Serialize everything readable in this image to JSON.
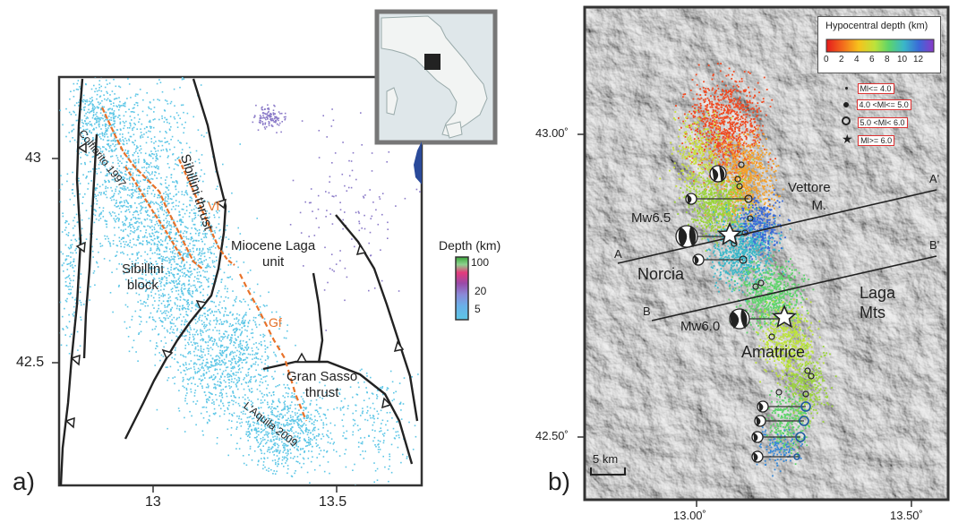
{
  "panel_a": {
    "letter": "a)",
    "lat_labels": [
      "43",
      "42.5"
    ],
    "lon_labels": [
      "13",
      "13.5"
    ],
    "fault_labels": {
      "sibillini_thrust": "Sibillini thrust",
      "colfiorito": "Colfiorito 1997",
      "vf": "Vf",
      "gf": "Gf",
      "miocene_laga_line1": "Miocene Laga",
      "miocene_laga_line2": "unit",
      "sibillini_block_line1": "Sibillini",
      "sibillini_block_line2": "block",
      "gran_sasso_line1": "Gran Sasso",
      "gran_sasso_line2": "thrust",
      "laquila": "L'Aquila 2009"
    },
    "depth_legend": {
      "title": "Depth (km)",
      "ticks": [
        "100",
        "20",
        "5"
      ]
    },
    "colors": {
      "seismicity": "#5cc6e6",
      "faults": "#222222",
      "active_faults": "#e8722a"
    }
  },
  "panel_b": {
    "letter": "b)",
    "lat_labels": [
      "43.00˚",
      "42.50˚"
    ],
    "lon_labels": [
      "13.00˚",
      "13.50˚"
    ],
    "colorbar": {
      "title": "Hypocentral depth (km)",
      "ticks": [
        "0",
        "2",
        "4",
        "6",
        "8",
        "10",
        "12"
      ]
    },
    "magnitude_legend": [
      "Ml<= 4.0",
      "4.0 <Ml<= 5.0",
      "5.0 <Ml< 6.0",
      "Ml>= 6.0"
    ],
    "place_labels": {
      "vettore_line1": "Vettore",
      "vettore_line2": "M.",
      "norcia": "Norcia",
      "laga_line1": "Laga",
      "laga_line2": "Mts",
      "amatrice": "Amatrice",
      "mw65": "Mw6.5",
      "mw60": "Mw6.0"
    },
    "profiles": {
      "a": "A",
      "a_prime": "A'",
      "b": "B",
      "b_prime": "B'"
    },
    "scale": "5 km",
    "colors": {
      "relief": "#9a9a9a",
      "profile": "#222222"
    }
  }
}
